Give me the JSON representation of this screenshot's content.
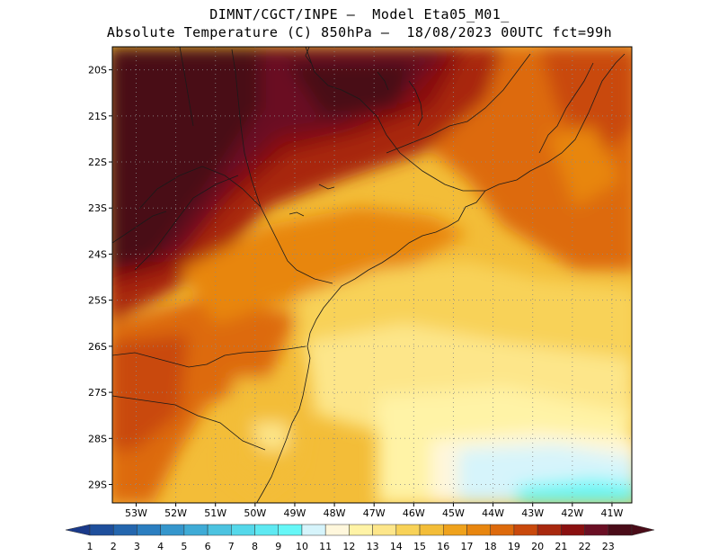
{
  "title": {
    "line1": "DIMNT/CGCT/INPE —  Model Eta05_M01_",
    "line2": "Absolute Temperature (C) 850hPa —  18/08/2023 00UTC fct=99h"
  },
  "map": {
    "lat_labels": [
      "20S",
      "21S",
      "22S",
      "23S",
      "24S",
      "25S",
      "26S",
      "27S",
      "28S",
      "29S"
    ],
    "lon_labels": [
      "53W",
      "52W",
      "51W",
      "50W",
      "49W",
      "48W",
      "47W",
      "46W",
      "45W",
      "44W",
      "43W",
      "42W",
      "41W"
    ],
    "lat_range": [
      -19.5,
      -29.4
    ],
    "lon_range": [
      -53.6,
      -40.5
    ]
  },
  "colorbar": {
    "labels": [
      "1",
      "2",
      "3",
      "4",
      "5",
      "6",
      "7",
      "8",
      "9",
      "10",
      "11",
      "12",
      "13",
      "14",
      "15",
      "16",
      "17",
      "18",
      "19",
      "20",
      "21",
      "22",
      "23"
    ],
    "colors": [
      "#1a3a8a",
      "#1e4f9c",
      "#2466ae",
      "#2b7ec0",
      "#3596cc",
      "#3fabd6",
      "#4cc3e0",
      "#55d8ea",
      "#5ee9f2",
      "#66f7f7",
      "#d6f4fb",
      "#fff7dc",
      "#fff3a6",
      "#fde68a",
      "#f8d258",
      "#f3bd38",
      "#efa21c",
      "#e8860f",
      "#dd6a0c",
      "#c9490c",
      "#a8280e",
      "#8a1010",
      "#6a0f24",
      "#4a0c18"
    ],
    "left_arrow_color": "#1a3a8a",
    "right_arrow_color": "#4a0c18"
  }
}
